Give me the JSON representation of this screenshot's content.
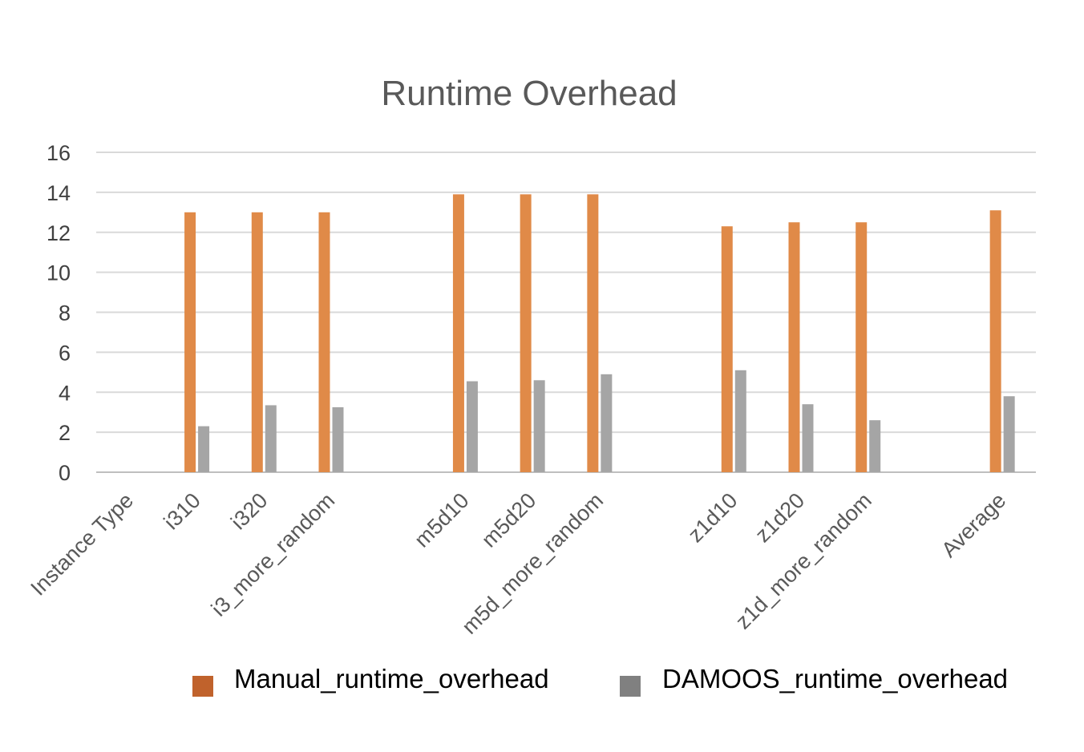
{
  "chart_data": {
    "type": "bar",
    "title": "Runtime Overhead",
    "categories": [
      "Instance Type",
      "i310",
      "i320",
      "i3_more_random",
      "",
      "m5d10",
      "m5d20",
      "m5d_more_random",
      "",
      "z1d10",
      "z1d20",
      "z1d_more_random",
      "",
      "Average"
    ],
    "series": [
      {
        "name": "Manual_runtime_overhead",
        "color": "#e08a48",
        "legend_color": "#c0622c",
        "values": [
          null,
          13.0,
          13.0,
          13.0,
          null,
          13.9,
          13.9,
          13.9,
          null,
          12.3,
          12.5,
          12.5,
          null,
          13.1
        ]
      },
      {
        "name": "DAMOOS_runtime_overhead",
        "color": "#a5a5a5",
        "legend_color": "#808080",
        "values": [
          null,
          2.3,
          3.35,
          3.25,
          null,
          4.55,
          4.6,
          4.9,
          null,
          5.1,
          3.4,
          2.6,
          null,
          3.8
        ]
      }
    ],
    "ylim": [
      0,
      16
    ],
    "yticks": [
      0,
      2,
      4,
      6,
      8,
      10,
      12,
      14,
      16
    ],
    "xlabel": "",
    "ylabel": "",
    "grid": true,
    "legend": "bottom"
  }
}
